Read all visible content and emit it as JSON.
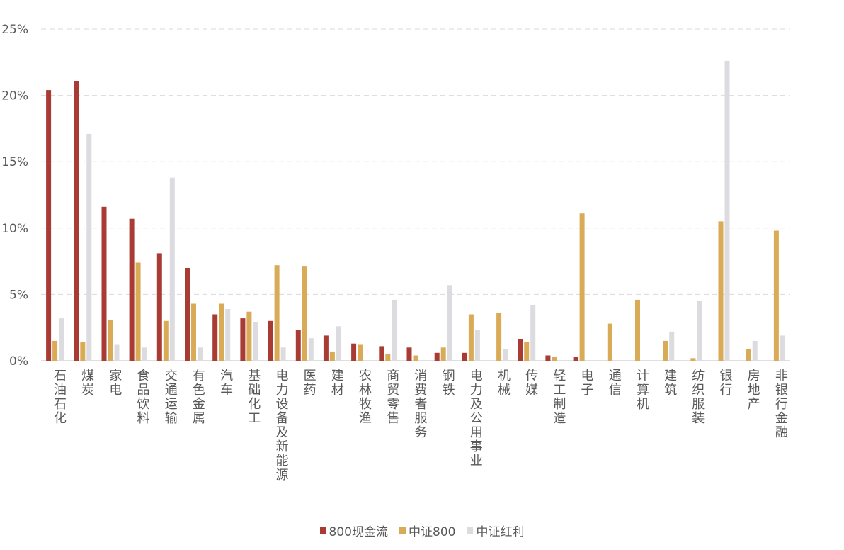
{
  "chart_data": {
    "type": "bar",
    "categories": [
      "石油石化",
      "煤炭",
      "家电",
      "食品饮料",
      "交通运输",
      "有色金属",
      "汽车",
      "基础化工",
      "电力设备及新能源",
      "医药",
      "建材",
      "农林牧渔",
      "商贸零售",
      "消费者服务",
      "钢铁",
      "电力及公用事业",
      "机械",
      "传媒",
      "轻工制造",
      "电子",
      "通信",
      "计算机",
      "建筑",
      "纺织服装",
      "银行",
      "房地产",
      "非银行金融"
    ],
    "series": [
      {
        "name": "800现金流",
        "color": "#A93B35",
        "values": [
          20.4,
          21.1,
          11.6,
          10.7,
          8.1,
          7.0,
          3.5,
          3.2,
          3.0,
          2.3,
          1.9,
          1.3,
          1.1,
          1.0,
          0.6,
          0.6,
          0.0,
          1.6,
          0.4,
          0.3,
          0.0,
          0.0,
          0.0,
          0.0,
          0.0,
          0.0,
          0.0
        ]
      },
      {
        "name": "中证800",
        "color": "#DAAB56",
        "values": [
          1.5,
          1.4,
          3.1,
          7.4,
          3.0,
          4.3,
          4.3,
          3.7,
          7.2,
          7.1,
          0.7,
          1.2,
          0.5,
          0.4,
          1.0,
          3.5,
          3.6,
          1.4,
          0.3,
          11.1,
          2.8,
          4.6,
          1.5,
          0.2,
          10.5,
          0.9,
          9.8
        ]
      },
      {
        "name": "中证红利",
        "color": "#DCDCE0",
        "values": [
          3.2,
          17.1,
          1.2,
          1.0,
          13.8,
          1.0,
          3.9,
          2.9,
          1.0,
          1.7,
          2.6,
          0.0,
          4.6,
          0.0,
          5.7,
          2.3,
          0.9,
          4.2,
          0.0,
          0.0,
          0.0,
          0.0,
          2.2,
          4.5,
          22.6,
          1.5,
          1.9
        ]
      }
    ],
    "yticks": [
      "0%",
      "5%",
      "10%",
      "15%",
      "20%",
      "25%"
    ],
    "ylim": [
      0,
      25
    ],
    "grid": true,
    "legend_position": "bottom-center"
  }
}
